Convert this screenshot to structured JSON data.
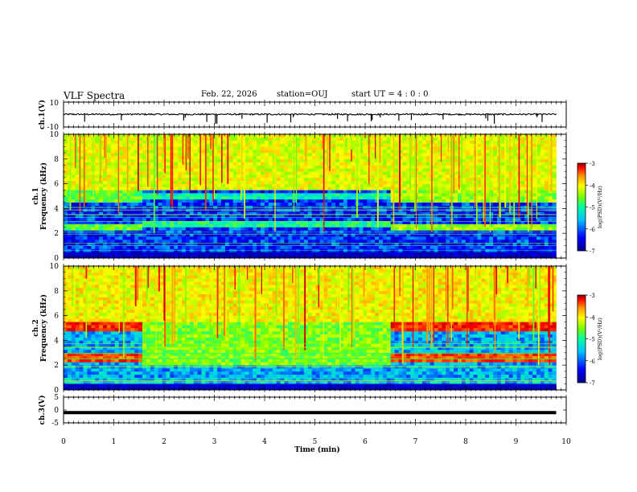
{
  "header": {
    "title": "VLF Spectra",
    "date": "Feb. 22, 2026",
    "station": "station=OUJ",
    "start": "start  UT =   4 : 0  : 0"
  },
  "colors": {
    "colormap": [
      "#00008b",
      "#0000ff",
      "#00bfff",
      "#00ffa0",
      "#7cfc00",
      "#ffff00",
      "#ff8c00",
      "#ff0000",
      "#8b0000"
    ]
  },
  "chart_data": [
    {
      "type": "line",
      "panel": "waveform ch.1",
      "ylabel": "ch.1(V)",
      "ylim": [
        -10,
        10
      ],
      "yticks": [
        "10",
        "-10"
      ],
      "xlim": [
        0,
        10
      ],
      "baseline": 0.2,
      "noise_amplitude": 0.6,
      "spike_times": [
        0.42,
        1.15,
        2.39,
        2.42,
        2.85,
        3.02,
        3.05,
        3.55,
        4.05,
        4.52,
        4.57,
        5.45,
        5.65,
        6.12,
        6.14,
        6.3,
        6.67,
        6.92,
        7.55,
        8.4,
        8.44,
        8.57,
        9.42,
        9.52
      ]
    },
    {
      "type": "heatmap",
      "panel": "spectrogram ch.1",
      "ylabel": [
        "ch.1",
        "Frequency (kHz)"
      ],
      "ylim": [
        0,
        10
      ],
      "yticks": [
        "0",
        "2",
        "4",
        "6",
        "8",
        "10"
      ],
      "xlim": [
        0,
        10
      ],
      "colorbar": {
        "label": "log(PSD)(V²/Hz)",
        "range": [
          -7,
          -3
        ],
        "ticks": [
          "-3",
          "-4",
          "-5",
          "-6",
          "-7"
        ]
      },
      "background_log_psd": -6.4,
      "bands": [
        {
          "t0": 0,
          "t1": 1.55,
          "f0": 2.2,
          "f1": 2.8,
          "log_psd": -5.1
        },
        {
          "t0": 1.55,
          "t1": 6.5,
          "f0": 2.4,
          "f1": 3.0,
          "log_psd": -5.5
        },
        {
          "t0": 6.5,
          "t1": 9.8,
          "f0": 2.2,
          "f1": 2.8,
          "log_psd": -4.9
        },
        {
          "t0": 0,
          "t1": 1.55,
          "f0": 4.6,
          "f1": 5.4,
          "log_psd": -5.1
        },
        {
          "t0": 1.55,
          "t1": 6.5,
          "f0": 4.8,
          "f1": 5.2,
          "log_psd": -5.6
        },
        {
          "t0": 6.5,
          "t1": 9.8,
          "f0": 4.6,
          "f1": 5.4,
          "log_psd": -4.9
        },
        {
          "t0": 0,
          "t1": 9.8,
          "f0": 5.4,
          "f1": 10,
          "log_psd": -4.6
        }
      ]
    },
    {
      "type": "heatmap",
      "panel": "spectrogram ch.2",
      "ylabel": [
        "ch.2",
        "Frequency (kHz)"
      ],
      "ylim": [
        0,
        10
      ],
      "yticks": [
        "0",
        "2",
        "4",
        "6",
        "8",
        "10"
      ],
      "xlim": [
        0,
        10
      ],
      "colorbar": {
        "label": "log(PSD)(V²/Hz)",
        "range": [
          -7,
          -3
        ],
        "ticks": [
          "-3",
          "-4",
          "-5",
          "-6",
          "-7"
        ]
      },
      "background_log_psd": -6.0,
      "bands": [
        {
          "t0": 0,
          "t1": 1.55,
          "f0": 2.3,
          "f1": 2.9,
          "log_psd": -3.7
        },
        {
          "t0": 1.55,
          "t1": 6.5,
          "f0": 2.0,
          "f1": 3.2,
          "log_psd": -5.0
        },
        {
          "t0": 6.5,
          "t1": 9.8,
          "f0": 2.3,
          "f1": 2.9,
          "log_psd": -3.7
        },
        {
          "t0": 0,
          "t1": 1.55,
          "f0": 4.8,
          "f1": 5.4,
          "log_psd": -3.6
        },
        {
          "t0": 1.55,
          "t1": 6.5,
          "f0": 3.2,
          "f1": 5.6,
          "log_psd": -5.0
        },
        {
          "t0": 6.5,
          "t1": 9.8,
          "f0": 4.8,
          "f1": 5.4,
          "log_psd": -3.6
        },
        {
          "t0": 0,
          "t1": 9.8,
          "f0": 5.6,
          "f1": 10,
          "log_psd": -4.5
        }
      ]
    },
    {
      "type": "line",
      "panel": "waveform ch.3",
      "ylabel": "ch.3(V)",
      "ylim": [
        -5,
        5
      ],
      "yticks": [
        "5",
        "0",
        "-5"
      ],
      "xlim": [
        0,
        10
      ],
      "xlabel": "Time  (min)",
      "xticks": [
        "0",
        "1",
        "2",
        "3",
        "4",
        "5",
        "6",
        "7",
        "8",
        "9",
        "10"
      ],
      "constant_value": -1.0,
      "data_end": 9.8
    }
  ]
}
